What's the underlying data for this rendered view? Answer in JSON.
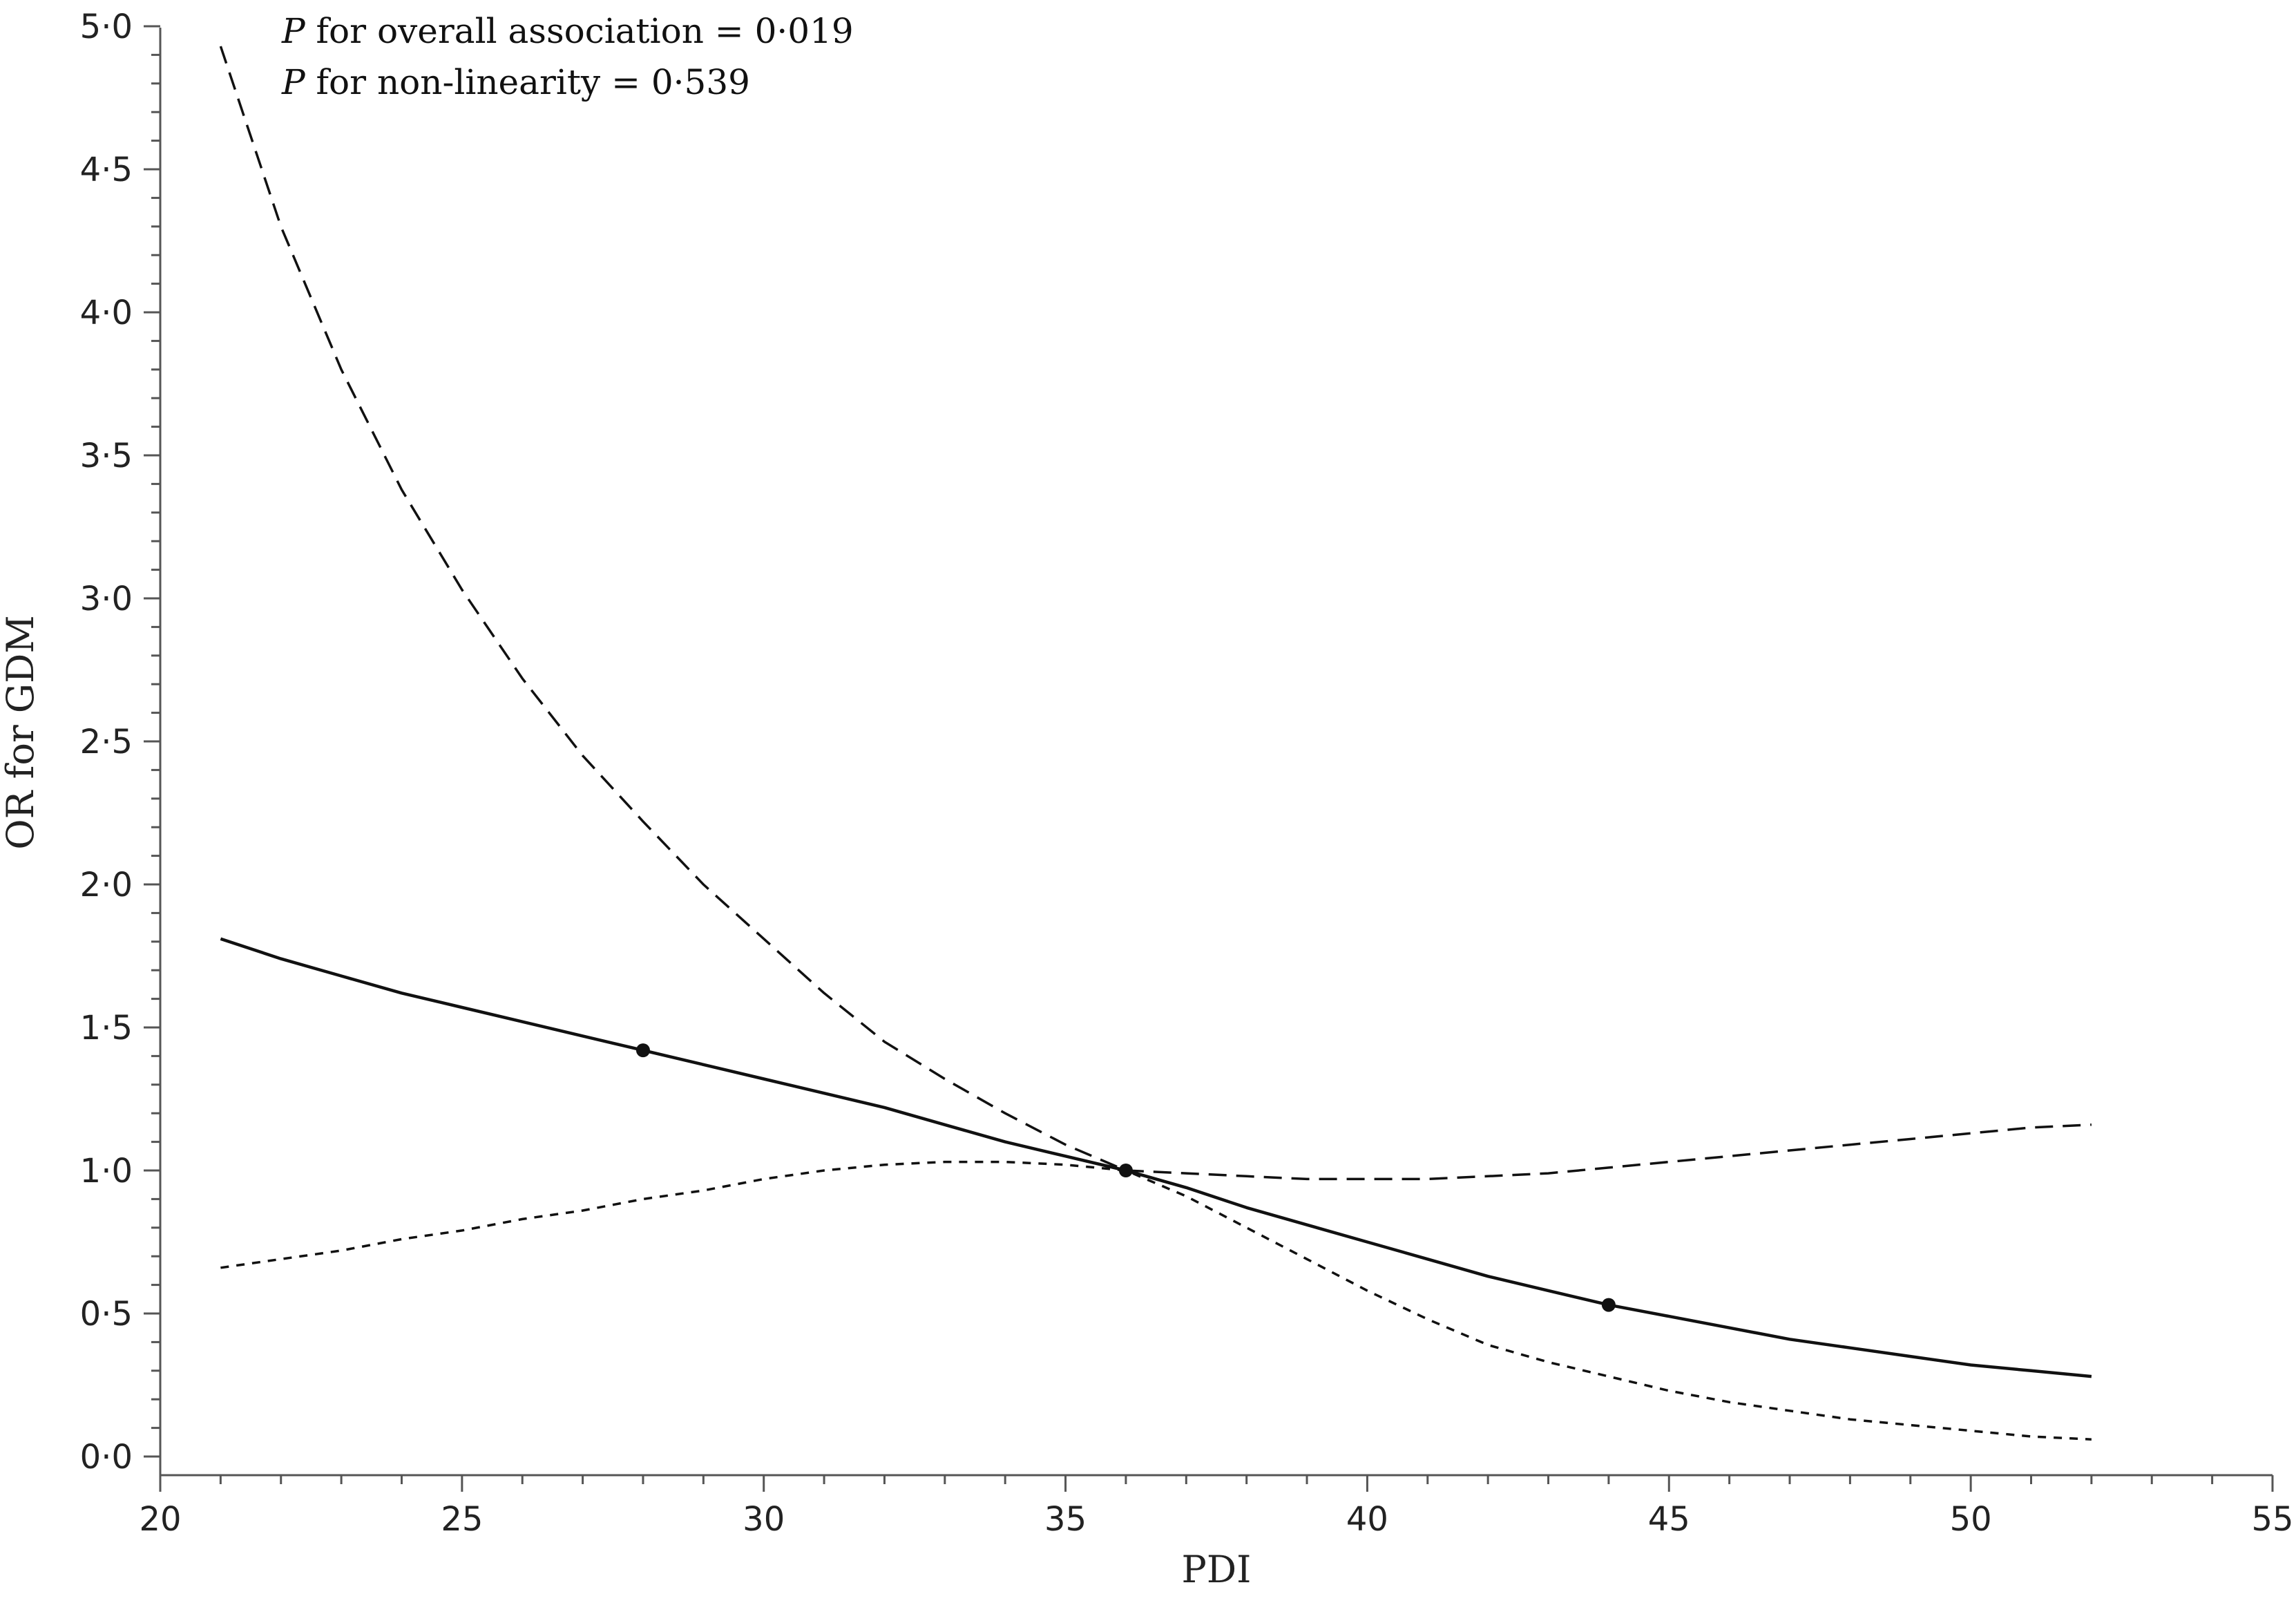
{
  "chart_data": {
    "type": "line",
    "xlabel": "PDI",
    "ylabel": "OR for GDM",
    "xlim": [
      20,
      55
    ],
    "ylim": [
      0,
      5
    ],
    "x_ticks": [
      20,
      25,
      30,
      35,
      40,
      45,
      50,
      55
    ],
    "x_tick_labels": [
      "20",
      "25",
      "30",
      "35",
      "40",
      "45",
      "50",
      "55"
    ],
    "y_ticks": [
      0,
      0.5,
      1,
      1.5,
      2,
      2.5,
      3,
      3.5,
      4,
      4.5,
      5
    ],
    "y_tick_labels": [
      "0·0",
      "0·5",
      "1·0",
      "1·5",
      "2·0",
      "2·5",
      "3·0",
      "3·5",
      "4·0",
      "4·5",
      "5·0"
    ],
    "grid": false,
    "annotations": [
      {
        "italic": "P",
        "text": " for overall association = 0·019"
      },
      {
        "italic": "P",
        "text": " for non-linearity = 0·539"
      }
    ],
    "series": [
      {
        "style": "solid",
        "x": [
          21,
          22,
          23,
          24,
          25,
          26,
          27,
          28,
          29,
          30,
          31,
          32,
          33,
          34,
          35,
          36,
          37,
          38,
          39,
          40,
          41,
          42,
          43,
          44,
          45,
          46,
          47,
          48,
          49,
          50,
          51,
          52
        ],
        "y": [
          1.81,
          1.74,
          1.68,
          1.62,
          1.57,
          1.52,
          1.47,
          1.42,
          1.37,
          1.32,
          1.27,
          1.22,
          1.16,
          1.1,
          1.05,
          1.0,
          0.94,
          0.87,
          0.81,
          0.75,
          0.69,
          0.63,
          0.58,
          0.53,
          0.49,
          0.45,
          0.41,
          0.38,
          0.35,
          0.32,
          0.3,
          0.28
        ]
      },
      {
        "style": "long-dash",
        "x": [
          21,
          22,
          23,
          24,
          25,
          26,
          27,
          28,
          29,
          30,
          31,
          32,
          33,
          34,
          35,
          36,
          37,
          38,
          39,
          40,
          41,
          42,
          43,
          44,
          45,
          46,
          47,
          48,
          49,
          50,
          51,
          52
        ],
        "y": [
          4.93,
          4.3,
          3.8,
          3.38,
          3.03,
          2.72,
          2.45,
          2.22,
          2.0,
          1.81,
          1.62,
          1.45,
          1.32,
          1.2,
          1.09,
          1.0,
          0.99,
          0.98,
          0.97,
          0.97,
          0.97,
          0.98,
          0.99,
          1.01,
          1.03,
          1.05,
          1.07,
          1.09,
          1.11,
          1.13,
          1.15,
          1.16
        ]
      },
      {
        "style": "short-dash",
        "x": [
          21,
          22,
          23,
          24,
          25,
          26,
          27,
          28,
          29,
          30,
          31,
          32,
          33,
          34,
          35,
          36,
          37,
          38,
          39,
          40,
          41,
          42,
          43,
          44,
          45,
          46,
          47,
          48,
          49,
          50,
          51,
          52
        ],
        "y": [
          0.66,
          0.69,
          0.72,
          0.76,
          0.79,
          0.83,
          0.86,
          0.9,
          0.93,
          0.97,
          1.0,
          1.02,
          1.03,
          1.03,
          1.02,
          1.0,
          0.91,
          0.8,
          0.69,
          0.58,
          0.48,
          0.39,
          0.33,
          0.28,
          0.23,
          0.19,
          0.16,
          0.13,
          0.11,
          0.09,
          0.07,
          0.06
        ]
      }
    ],
    "markers": {
      "x": [
        28,
        36,
        44
      ],
      "y": [
        1.42,
        1.0,
        0.53
      ]
    }
  }
}
